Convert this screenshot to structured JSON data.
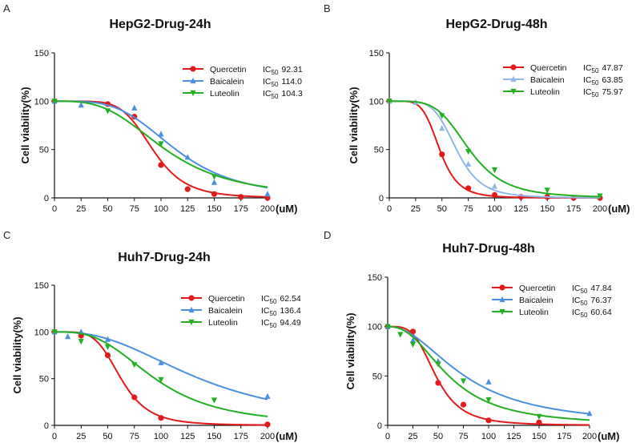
{
  "colors": {
    "quercetin": "#e31a1c",
    "baicalein": "#8fb8e8",
    "luteolin": "#22b022",
    "baicalein_dark": "#4a90e2"
  },
  "chart_data": [
    {
      "panel": "A",
      "type": "line",
      "title": "HepG2-Drug-24h",
      "ylabel": "Cell viability(%)",
      "xunit": "(uM)",
      "xlim": [
        0,
        200
      ],
      "ylim": [
        0,
        150
      ],
      "xticks": [
        "0",
        "25",
        "50",
        "75",
        "100",
        "125",
        "150",
        "175",
        "200"
      ],
      "yticks": [
        "0",
        "50",
        "100",
        "150"
      ],
      "series": [
        {
          "name": "Quercetin",
          "ic50_label": "IC",
          "ic50_sub": "50",
          "ic50": "92.31",
          "hill": 6.0,
          "color": "#e31a1c",
          "marker": "circle",
          "x": [
            0,
            50,
            75,
            100,
            125,
            150,
            175,
            200
          ],
          "y": [
            100,
            97,
            84,
            34,
            9,
            4,
            1,
            0
          ]
        },
        {
          "name": "Baicalein",
          "ic50_label": "IC",
          "ic50_sub": "50",
          "ic50": "114.0",
          "hill": 3.8,
          "color": "#4a90e2",
          "marker": "triangle",
          "x": [
            0,
            25,
            75,
            100,
            125,
            150,
            200
          ],
          "y": [
            100,
            96,
            93,
            66,
            42,
            16,
            4
          ]
        },
        {
          "name": "Luteolin",
          "ic50_label": "IC",
          "ic50_sub": "50",
          "ic50": "104.3",
          "hill": 3.2,
          "color": "#22b022",
          "marker": "triangle-down",
          "x": [
            0,
            50,
            100,
            150
          ],
          "y": [
            100,
            90,
            56,
            22
          ]
        }
      ]
    },
    {
      "panel": "B",
      "type": "line",
      "title": "HepG2-Drug-48h",
      "ylabel": "Cell viability(%)",
      "xunit": "(uM)",
      "xlim": [
        0,
        200
      ],
      "ylim": [
        0,
        150
      ],
      "xticks": [
        "0",
        "25",
        "50",
        "75",
        "100",
        "125",
        "150",
        "175",
        "200"
      ],
      "yticks": [
        "0",
        "50",
        "100",
        "150"
      ],
      "series": [
        {
          "name": "Quercetin",
          "ic50_label": "IC",
          "ic50_sub": "50",
          "ic50": "47.87",
          "hill": 5.5,
          "color": "#e31a1c",
          "marker": "circle",
          "x": [
            0,
            50,
            75,
            100,
            125,
            150,
            175,
            200
          ],
          "y": [
            100,
            45,
            10,
            3,
            1,
            1,
            0,
            0
          ]
        },
        {
          "name": "Baicalein",
          "ic50_label": "IC",
          "ic50_sub": "50",
          "ic50": "63.85",
          "hill": 5.5,
          "color": "#8fb8e8",
          "marker": "triangle",
          "x": [
            0,
            25,
            50,
            75,
            100
          ],
          "y": [
            100,
            99,
            72,
            35,
            12
          ]
        },
        {
          "name": "Luteolin",
          "ic50_label": "IC",
          "ic50_sub": "50",
          "ic50": "75.97",
          "hill": 4.5,
          "color": "#22b022",
          "marker": "triangle-down",
          "x": [
            0,
            50,
            75,
            100,
            150,
            200
          ],
          "y": [
            100,
            85,
            48,
            29,
            8,
            2
          ]
        }
      ]
    },
    {
      "panel": "C",
      "type": "line",
      "title": "Huh7-Drug-24h",
      "ylabel": "Cell viability(%)",
      "xunit": "(uM)",
      "xlim": [
        0,
        200
      ],
      "ylim": [
        0,
        150
      ],
      "xticks": [
        "0",
        "25",
        "50",
        "75",
        "100",
        "125",
        "150",
        "175",
        "200"
      ],
      "yticks": [
        "0",
        "50",
        "100",
        "150"
      ],
      "series": [
        {
          "name": "Quercetin",
          "ic50_label": "IC",
          "ic50_sub": "50",
          "ic50": "62.54",
          "hill": 4.8,
          "color": "#e31a1c",
          "marker": "circle",
          "x": [
            0,
            25,
            50,
            75,
            100,
            200
          ],
          "y": [
            100,
            96,
            75,
            30,
            8,
            1
          ]
        },
        {
          "name": "Baicalein",
          "ic50_label": "IC",
          "ic50_sub": "50",
          "ic50": "136.4",
          "hill": 2.5,
          "color": "#4a90e2",
          "marker": "triangle",
          "x": [
            0,
            12.5,
            25,
            50,
            100,
            200
          ],
          "y": [
            100,
            95,
            100,
            92,
            67,
            31
          ]
        },
        {
          "name": "Luteolin",
          "ic50_label": "IC",
          "ic50_sub": "50",
          "ic50": "94.49",
          "hill": 3.0,
          "color": "#22b022",
          "marker": "triangle-down",
          "x": [
            0,
            25,
            50,
            75,
            100,
            150
          ],
          "y": [
            100,
            90,
            84,
            65,
            49,
            27
          ]
        }
      ]
    },
    {
      "panel": "D",
      "type": "line",
      "title": "Huh7-Drug-48h",
      "ylabel": "Cell viability(%)",
      "xunit": "(uM)",
      "xlim": [
        0,
        200
      ],
      "ylim": [
        0,
        150
      ],
      "xticks": [
        "0",
        "25",
        "50",
        "75",
        "100",
        "125",
        "150",
        "175",
        "200"
      ],
      "yticks": [
        "0",
        "50",
        "100",
        "150"
      ],
      "series": [
        {
          "name": "Quercetin",
          "ic50_label": "IC",
          "ic50_sub": "50",
          "ic50": "47.84",
          "hill": 3.8,
          "color": "#e31a1c",
          "marker": "circle",
          "x": [
            0,
            25,
            50,
            75,
            100,
            150
          ],
          "y": [
            100,
            95,
            43,
            21,
            5,
            3
          ]
        },
        {
          "name": "Baicalein",
          "ic50_label": "IC",
          "ic50_sub": "50",
          "ic50": "76.37",
          "hill": 2.1,
          "color": "#4a90e2",
          "marker": "triangle",
          "x": [
            0,
            25,
            50,
            100,
            200
          ],
          "y": [
            100,
            86,
            65,
            44,
            12
          ]
        },
        {
          "name": "Luteolin",
          "ic50_label": "IC",
          "ic50_sub": "50",
          "ic50": "60.64",
          "hill": 2.4,
          "color": "#22b022",
          "marker": "triangle-down",
          "x": [
            0,
            12.5,
            25,
            50,
            75,
            100,
            150
          ],
          "y": [
            100,
            92,
            82,
            62,
            45,
            26,
            9
          ]
        }
      ]
    }
  ]
}
